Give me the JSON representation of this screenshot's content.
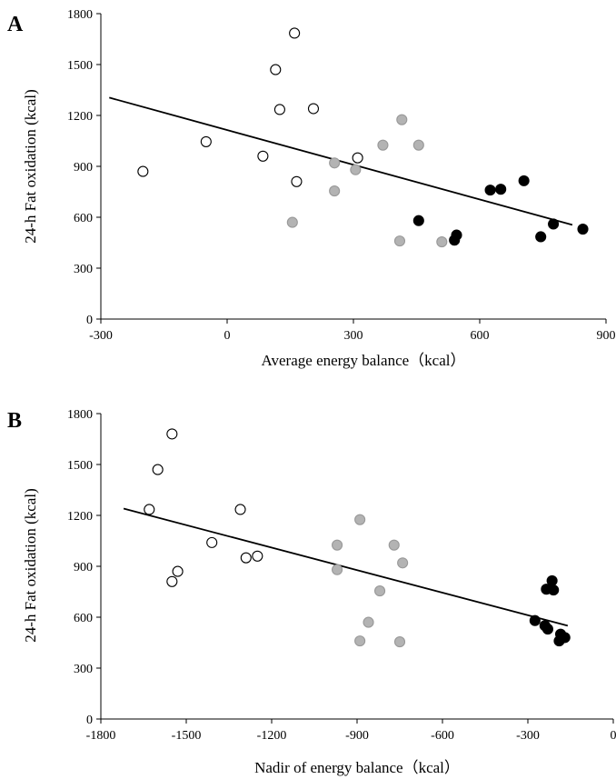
{
  "chart_data": [
    {
      "panel_label": "A",
      "type": "scatter",
      "xlabel": "Average energy balance（kcal）",
      "ylabel": "24-h Fat oxidation (kcal)",
      "xlim": [
        -300,
        900
      ],
      "ylim": [
        0,
        1800
      ],
      "xticks": [
        -300,
        0,
        300,
        600,
        900
      ],
      "yticks": [
        0,
        300,
        600,
        900,
        1200,
        1500,
        1800
      ],
      "series": [
        {
          "style": "open",
          "fill": "#ffffff",
          "stroke": "#000000",
          "points": [
            [
              -200,
              870
            ],
            [
              -50,
              1045
            ],
            [
              85,
              960
            ],
            [
              115,
              1470
            ],
            [
              125,
              1235
            ],
            [
              160,
              1685
            ],
            [
              165,
              810
            ],
            [
              205,
              1240
            ],
            [
              310,
              950
            ]
          ]
        },
        {
          "style": "gray",
          "fill": "#b3b3b3",
          "stroke": "#999999",
          "points": [
            [
              155,
              570
            ],
            [
              255,
              920
            ],
            [
              255,
              755
            ],
            [
              305,
              880
            ],
            [
              370,
              1025
            ],
            [
              410,
              460
            ],
            [
              415,
              1175
            ],
            [
              455,
              1025
            ],
            [
              510,
              455
            ]
          ]
        },
        {
          "style": "black",
          "fill": "#000000",
          "stroke": "#000000",
          "points": [
            [
              455,
              580
            ],
            [
              540,
              465
            ],
            [
              545,
              495
            ],
            [
              625,
              760
            ],
            [
              650,
              765
            ],
            [
              705,
              815
            ],
            [
              745,
              485
            ],
            [
              775,
              560
            ],
            [
              845,
              530
            ]
          ]
        }
      ],
      "trendline": [
        [
          -280,
          1305
        ],
        [
          820,
          555
        ]
      ]
    },
    {
      "panel_label": "B",
      "type": "scatter",
      "xlabel": "Nadir of energy balance（kcal）",
      "ylabel": "24-h Fat oxidation (kcal)",
      "xlim": [
        -1800,
        0
      ],
      "ylim": [
        0,
        1800
      ],
      "xticks": [
        -1800,
        -1500,
        -1200,
        -900,
        -600,
        -300,
        0
      ],
      "yticks": [
        0,
        300,
        600,
        900,
        1200,
        1500,
        1800
      ],
      "series": [
        {
          "style": "open",
          "fill": "#ffffff",
          "stroke": "#000000",
          "points": [
            [
              -1630,
              1235
            ],
            [
              -1600,
              1470
            ],
            [
              -1550,
              1680
            ],
            [
              -1550,
              810
            ],
            [
              -1530,
              870
            ],
            [
              -1410,
              1040
            ],
            [
              -1310,
              1235
            ],
            [
              -1290,
              950
            ],
            [
              -1250,
              960
            ]
          ]
        },
        {
          "style": "gray",
          "fill": "#b3b3b3",
          "stroke": "#999999",
          "points": [
            [
              -970,
              1025
            ],
            [
              -970,
              880
            ],
            [
              -890,
              1175
            ],
            [
              -890,
              460
            ],
            [
              -860,
              570
            ],
            [
              -820,
              755
            ],
            [
              -770,
              1025
            ],
            [
              -750,
              455
            ],
            [
              -740,
              920
            ]
          ]
        },
        {
          "style": "black",
          "fill": "#000000",
          "stroke": "#000000",
          "points": [
            [
              -275,
              580
            ],
            [
              -240,
              550
            ],
            [
              -235,
              765
            ],
            [
              -230,
              530
            ],
            [
              -215,
              815
            ],
            [
              -210,
              760
            ],
            [
              -190,
              460
            ],
            [
              -185,
              500
            ],
            [
              -170,
              480
            ]
          ]
        }
      ],
      "trendline": [
        [
          -1720,
          1240
        ],
        [
          -160,
          550
        ]
      ]
    }
  ]
}
